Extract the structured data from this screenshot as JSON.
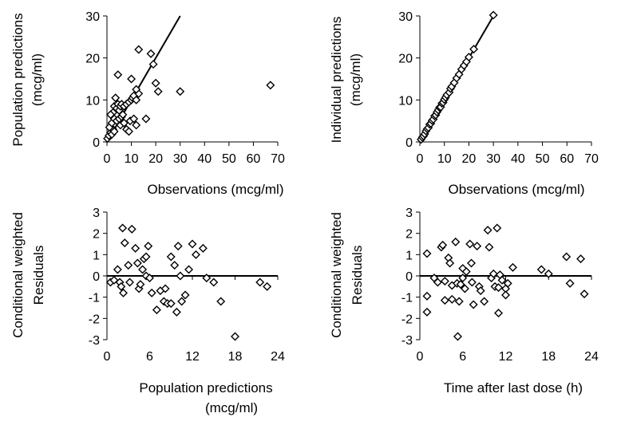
{
  "chart_data": [
    {
      "type": "scatter",
      "xlabel": "Observations (mcg/ml)",
      "ylabel": [
        "Population predictions",
        "(mcg/ml)"
      ],
      "xlim": [
        0,
        70
      ],
      "ylim": [
        0,
        30
      ],
      "xticks": [
        0,
        10,
        20,
        30,
        40,
        50,
        60,
        70
      ],
      "yticks": [
        0,
        10,
        20,
        30
      ],
      "marker": "open-diamond",
      "reference_line": {
        "type": "identity",
        "from": [
          0,
          0
        ],
        "to": [
          30,
          30
        ]
      },
      "points": [
        [
          0.2,
          0.8
        ],
        [
          0.8,
          1.5
        ],
        [
          1.5,
          2.2
        ],
        [
          2,
          1.8
        ],
        [
          2.5,
          3
        ],
        [
          3,
          2.5
        ],
        [
          1,
          3.5
        ],
        [
          2,
          4.5
        ],
        [
          3,
          5.5
        ],
        [
          2.5,
          7
        ],
        [
          1.5,
          6.5
        ],
        [
          3,
          8.5
        ],
        [
          3.5,
          10.5
        ],
        [
          4,
          8
        ],
        [
          4.5,
          9
        ],
        [
          5,
          7.5
        ],
        [
          5.5,
          8.5
        ],
        [
          6,
          9
        ],
        [
          4,
          5
        ],
        [
          5,
          5.5
        ],
        [
          6,
          6
        ],
        [
          6.5,
          6.5
        ],
        [
          5.5,
          4
        ],
        [
          7,
          4.5
        ],
        [
          8,
          3
        ],
        [
          9,
          2.5
        ],
        [
          4.5,
          16
        ],
        [
          7,
          8.5
        ],
        [
          8,
          9
        ],
        [
          9,
          9.5
        ],
        [
          10,
          10
        ],
        [
          10.5,
          10.5
        ],
        [
          11,
          11
        ],
        [
          12,
          10
        ],
        [
          13,
          11.5
        ],
        [
          9.5,
          5
        ],
        [
          11,
          5.5
        ],
        [
          12,
          4
        ],
        [
          10,
          15
        ],
        [
          12,
          12.5
        ],
        [
          13,
          22
        ],
        [
          16,
          5.5
        ],
        [
          18,
          21
        ],
        [
          19,
          18.5
        ],
        [
          20,
          14
        ],
        [
          21,
          12
        ],
        [
          30,
          12
        ],
        [
          67,
          13.5
        ]
      ]
    },
    {
      "type": "scatter",
      "xlabel": "Observations (mcg/ml)",
      "ylabel": [
        "Individual predictions",
        "(mcg/ml)"
      ],
      "xlim": [
        0,
        70
      ],
      "ylim": [
        0,
        30
      ],
      "xticks": [
        0,
        10,
        20,
        30,
        40,
        50,
        60,
        70
      ],
      "yticks": [
        0,
        10,
        20,
        30
      ],
      "marker": "open-diamond",
      "reference_line": {
        "type": "identity",
        "from": [
          0,
          0
        ],
        "to": [
          30.5,
          30.5
        ]
      },
      "points": [
        [
          0.5,
          0.6
        ],
        [
          1,
          1.1
        ],
        [
          1.5,
          1.4
        ],
        [
          2,
          1.9
        ],
        [
          2.5,
          2.6
        ],
        [
          3,
          3.1
        ],
        [
          3.5,
          3.4
        ],
        [
          4,
          4.2
        ],
        [
          4.5,
          4.4
        ],
        [
          5,
          5.1
        ],
        [
          5.5,
          5.4
        ],
        [
          6,
          6.2
        ],
        [
          6.5,
          6.4
        ],
        [
          7,
          7.1
        ],
        [
          7.5,
          7.6
        ],
        [
          8,
          8.2
        ],
        [
          8.5,
          8.3
        ],
        [
          9,
          9.2
        ],
        [
          9.5,
          9.4
        ],
        [
          10,
          10.1
        ],
        [
          10.5,
          10.6
        ],
        [
          11,
          11.2
        ],
        [
          12,
          11.8
        ],
        [
          12.5,
          12.7
        ],
        [
          13,
          13.2
        ],
        [
          14,
          14.1
        ],
        [
          15,
          15.2
        ],
        [
          16,
          16.1
        ],
        [
          17,
          17.3
        ],
        [
          18,
          18.2
        ],
        [
          19,
          19.1
        ],
        [
          20,
          20.2
        ],
        [
          22,
          22.1
        ],
        [
          30,
          30.2
        ]
      ]
    },
    {
      "type": "scatter",
      "xlabel": [
        "Population predictions",
        "(mcg/ml)"
      ],
      "ylabel": [
        "Conditional weighted",
        "Residuals"
      ],
      "xlim": [
        0,
        24
      ],
      "ylim": [
        -3,
        3
      ],
      "xticks": [
        0,
        6,
        12,
        18,
        24
      ],
      "yticks": [
        -3,
        -2,
        -1,
        0,
        1,
        2,
        3
      ],
      "marker": "open-diamond",
      "reference_line": {
        "type": "horizontal",
        "y": 0
      },
      "points": [
        [
          0.5,
          -0.3
        ],
        [
          1,
          -0.2
        ],
        [
          1.5,
          0.3
        ],
        [
          1.8,
          -0.3
        ],
        [
          2,
          -0.5
        ],
        [
          2.3,
          -0.8
        ],
        [
          2.2,
          2.25
        ],
        [
          2.5,
          1.55
        ],
        [
          3,
          0.5
        ],
        [
          3.5,
          2.2
        ],
        [
          3.2,
          -0.3
        ],
        [
          4,
          1.3
        ],
        [
          4.3,
          0.6
        ],
        [
          4.5,
          -0.6
        ],
        [
          4.7,
          -0.4
        ],
        [
          5,
          0.3
        ],
        [
          5.2,
          0.8
        ],
        [
          5.5,
          0.9
        ],
        [
          5.8,
          1.4
        ],
        [
          5.5,
          0
        ],
        [
          6,
          -0.1
        ],
        [
          6.3,
          -0.8
        ],
        [
          7,
          -1.6
        ],
        [
          7.5,
          -0.7
        ],
        [
          8,
          -1.2
        ],
        [
          8.2,
          -0.6
        ],
        [
          8.5,
          -1.3
        ],
        [
          9,
          0.9
        ],
        [
          9.5,
          0.5
        ],
        [
          9,
          -1.3
        ],
        [
          9.8,
          -1.7
        ],
        [
          10,
          1.4
        ],
        [
          10.3,
          0
        ],
        [
          10.5,
          -1.2
        ],
        [
          11,
          -0.9
        ],
        [
          11.5,
          0.3
        ],
        [
          12,
          1.5
        ],
        [
          12.5,
          1
        ],
        [
          13.5,
          1.3
        ],
        [
          14,
          -0.1
        ],
        [
          15,
          -0.3
        ],
        [
          16,
          -1.2
        ],
        [
          18,
          -2.85
        ],
        [
          21.5,
          -0.3
        ],
        [
          22.5,
          -0.5
        ]
      ]
    },
    {
      "type": "scatter",
      "xlabel": "Time after last dose (h)",
      "ylabel": [
        "Conditional weighted",
        "Residuals"
      ],
      "xlim": [
        0,
        24
      ],
      "ylim": [
        -3,
        3
      ],
      "xticks": [
        0,
        6,
        12,
        18,
        24
      ],
      "yticks": [
        -3,
        -2,
        -1,
        0,
        1,
        2,
        3
      ],
      "marker": "open-diamond",
      "reference_line": {
        "type": "horizontal",
        "y": 0
      },
      "points": [
        [
          1,
          1.05
        ],
        [
          1,
          -0.95
        ],
        [
          1,
          -1.7
        ],
        [
          2,
          -0.1
        ],
        [
          2.5,
          -0.3
        ],
        [
          3,
          1.35
        ],
        [
          3.2,
          1.45
        ],
        [
          3.5,
          -0.25
        ],
        [
          3.5,
          -1.15
        ],
        [
          4,
          0.85
        ],
        [
          4.2,
          0.6
        ],
        [
          4.5,
          -0.45
        ],
        [
          4.5,
          -1.1
        ],
        [
          5,
          1.6
        ],
        [
          5.2,
          -0.35
        ],
        [
          5.3,
          -2.85
        ],
        [
          5.5,
          -1.2
        ],
        [
          5.7,
          -0.4
        ],
        [
          6,
          0.35
        ],
        [
          6,
          -0.1
        ],
        [
          6.3,
          -0.6
        ],
        [
          6.5,
          0.2
        ],
        [
          7,
          1.5
        ],
        [
          7.2,
          0.6
        ],
        [
          7.3,
          -0.3
        ],
        [
          7.5,
          -1.35
        ],
        [
          8,
          1.4
        ],
        [
          8.3,
          -0.5
        ],
        [
          8.5,
          -0.7
        ],
        [
          9,
          -1.2
        ],
        [
          9.5,
          2.15
        ],
        [
          9.7,
          1.35
        ],
        [
          10,
          -0.1
        ],
        [
          10.3,
          0.1
        ],
        [
          10.5,
          -0.5
        ],
        [
          10.8,
          2.25
        ],
        [
          11,
          -0.55
        ],
        [
          11,
          -1.75
        ],
        [
          11.2,
          0.05
        ],
        [
          11.5,
          -0.2
        ],
        [
          12,
          -0.6
        ],
        [
          12,
          -0.9
        ],
        [
          12.3,
          -0.35
        ],
        [
          13,
          0.4
        ],
        [
          17,
          0.3
        ],
        [
          18,
          0.1
        ],
        [
          20.5,
          0.9
        ],
        [
          21,
          -0.35
        ],
        [
          22.5,
          0.8
        ],
        [
          23,
          -0.85
        ]
      ]
    }
  ]
}
